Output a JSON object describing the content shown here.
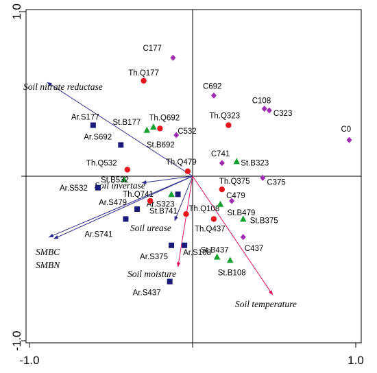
{
  "chart_data": {
    "type": "scatter",
    "title": "",
    "xlabel": "",
    "ylabel": "",
    "xlim": [
      -1.0,
      1.0
    ],
    "ylim": [
      -1.0,
      1.0
    ],
    "x_tick_labels": [
      "-1.0",
      "1.0"
    ],
    "y_tick_labels": [
      "1.0",
      "-1.0"
    ],
    "grid": false,
    "series": [
      {
        "marker": "square",
        "color": "#1a1a7a",
        "points": [
          {
            "label": "Ar.S177",
            "x": -0.61,
            "y": 0.31
          },
          {
            "label": "Ar.S692",
            "x": -0.44,
            "y": 0.19
          },
          {
            "label": "Ar.S532",
            "x": -0.58,
            "y": -0.07
          },
          {
            "label": "Ar.S479",
            "x": -0.34,
            "y": -0.2
          },
          {
            "label": "Ar.S741",
            "x": -0.41,
            "y": -0.26
          },
          {
            "label": "Ar.S323",
            "x": -0.09,
            "y": -0.11
          },
          {
            "label": "Ar.S108",
            "x": -0.05,
            "y": -0.42
          },
          {
            "label": "Ar.S375",
            "x": -0.13,
            "y": -0.42
          },
          {
            "label": "Ar.S437",
            "x": -0.14,
            "y": -0.64
          }
        ]
      },
      {
        "marker": "circle",
        "color": "#e8141e",
        "points": [
          {
            "label": "Th.Q177",
            "x": -0.3,
            "y": 0.58
          },
          {
            "label": "Th.Q692",
            "x": -0.2,
            "y": 0.29
          },
          {
            "label": "Th.Q323",
            "x": 0.22,
            "y": 0.31
          },
          {
            "label": "Th.Q532",
            "x": -0.4,
            "y": 0.04
          },
          {
            "label": "Th.Q479",
            "x": -0.03,
            "y": 0.03
          },
          {
            "label": "Th.Q375",
            "x": 0.18,
            "y": -0.08
          },
          {
            "label": "Th.Q741",
            "x": -0.26,
            "y": -0.15
          },
          {
            "label": "Th.Q108",
            "x": -0.04,
            "y": -0.23
          },
          {
            "label": "Th.Q437",
            "x": 0.13,
            "y": -0.26
          }
        ]
      },
      {
        "marker": "triangle",
        "color": "#17a12e",
        "points": [
          {
            "label": "St.B177",
            "x": -0.28,
            "y": 0.28
          },
          {
            "label": "St.B692",
            "x": -0.24,
            "y": 0.3
          },
          {
            "label": "St.B323",
            "x": 0.27,
            "y": 0.09
          },
          {
            "label": "St.B532",
            "x": -0.42,
            "y": -0.02
          },
          {
            "label": "St.B741",
            "x": -0.13,
            "y": -0.11
          },
          {
            "label": "St.B479",
            "x": 0.17,
            "y": -0.17
          },
          {
            "label": "St.B375",
            "x": 0.31,
            "y": -0.26
          },
          {
            "label": "St.B437",
            "x": 0.15,
            "y": -0.49
          },
          {
            "label": "St.B108",
            "x": 0.23,
            "y": -0.51
          }
        ]
      },
      {
        "marker": "diamond",
        "color": "#a02cb4",
        "points": [
          {
            "label": "C177",
            "x": -0.12,
            "y": 0.72
          },
          {
            "label": "C692",
            "x": 0.13,
            "y": 0.49
          },
          {
            "label": "C108",
            "x": 0.44,
            "y": 0.41
          },
          {
            "label": "C323",
            "x": 0.47,
            "y": 0.4
          },
          {
            "label": "C532",
            "x": -0.1,
            "y": 0.25
          },
          {
            "label": "C0",
            "x": 0.96,
            "y": 0.22
          },
          {
            "label": "C741",
            "x": 0.18,
            "y": 0.08
          },
          {
            "label": "C375",
            "x": 0.43,
            "y": -0.01
          },
          {
            "label": "C479",
            "x": 0.24,
            "y": -0.15
          },
          {
            "label": "C437",
            "x": 0.31,
            "y": -0.37
          }
        ]
      }
    ],
    "vectors": [
      {
        "label": "Soil nitrate reductase",
        "x": -0.89,
        "y": 0.57,
        "color": "#2b2b8c"
      },
      {
        "label": "Soil invertase",
        "x": -0.31,
        "y": -0.04,
        "color": "#2b2b8c"
      },
      {
        "label": "Soil urease",
        "x": -0.11,
        "y": -0.27,
        "color": "#2b2b8c"
      },
      {
        "label": "SMBC",
        "x": -0.88,
        "y": -0.37,
        "color": "#2b2b8c"
      },
      {
        "label": "SMBN",
        "x": -0.85,
        "y": -0.38,
        "color": "#2b2b8c"
      },
      {
        "label": "Soil moisture",
        "x": -0.09,
        "y": -0.55,
        "color": "#e0105a"
      },
      {
        "label": "Soil temperature",
        "x": 0.49,
        "y": -0.72,
        "color": "#e0105a"
      }
    ]
  }
}
